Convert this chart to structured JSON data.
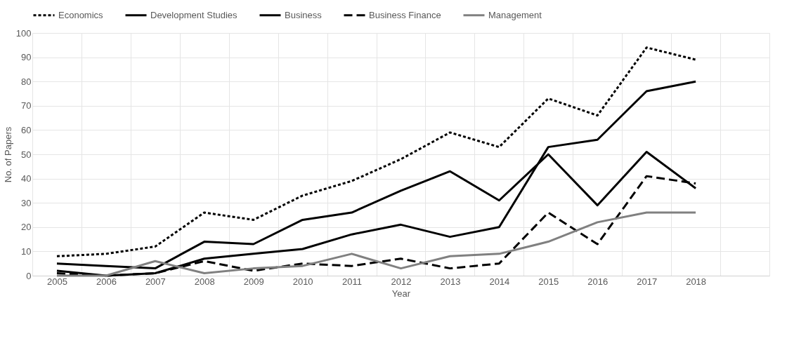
{
  "chart_data": {
    "type": "line",
    "xlabel": "Year",
    "ylabel": "No. of Papers",
    "categories": [
      "2005",
      "2006",
      "2007",
      "2008",
      "2009",
      "2010",
      "2011",
      "2012",
      "2013",
      "2014",
      "2015",
      "2016",
      "2017",
      "2018",
      null
    ],
    "ylim": [
      0,
      100
    ],
    "yticks": [
      0,
      10,
      20,
      30,
      40,
      50,
      60,
      70,
      80,
      90,
      100
    ],
    "grid": true,
    "legend": "top",
    "marker": "none",
    "series": [
      {
        "name": "Economics",
        "color": "#000000",
        "line_style": "dotted",
        "values": [
          8,
          9,
          12,
          26,
          23,
          33,
          39,
          48,
          59,
          53,
          73,
          66,
          94,
          89,
          null
        ]
      },
      {
        "name": "Development Studies",
        "color": "#000000",
        "line_style": "solid",
        "values": [
          5,
          4,
          3,
          14,
          13,
          23,
          26,
          35,
          43,
          31,
          50,
          29,
          51,
          36,
          null
        ]
      },
      {
        "name": "Business",
        "color": "#000000",
        "line_style": "solid",
        "values": [
          2,
          0,
          1,
          7,
          9,
          11,
          17,
          21,
          16,
          20,
          53,
          56,
          76,
          80,
          null
        ]
      },
      {
        "name": "Business Finance",
        "color": "#000000",
        "line_style": "dashed",
        "values": [
          1,
          0,
          1,
          6,
          2,
          5,
          4,
          7,
          3,
          5,
          26,
          13,
          41,
          38,
          null
        ]
      },
      {
        "name": "Management",
        "color": "#808080",
        "line_style": "solid",
        "values": [
          0,
          0,
          6,
          1,
          3,
          4,
          9,
          3,
          8,
          9,
          14,
          22,
          26,
          26,
          null
        ]
      }
    ]
  }
}
